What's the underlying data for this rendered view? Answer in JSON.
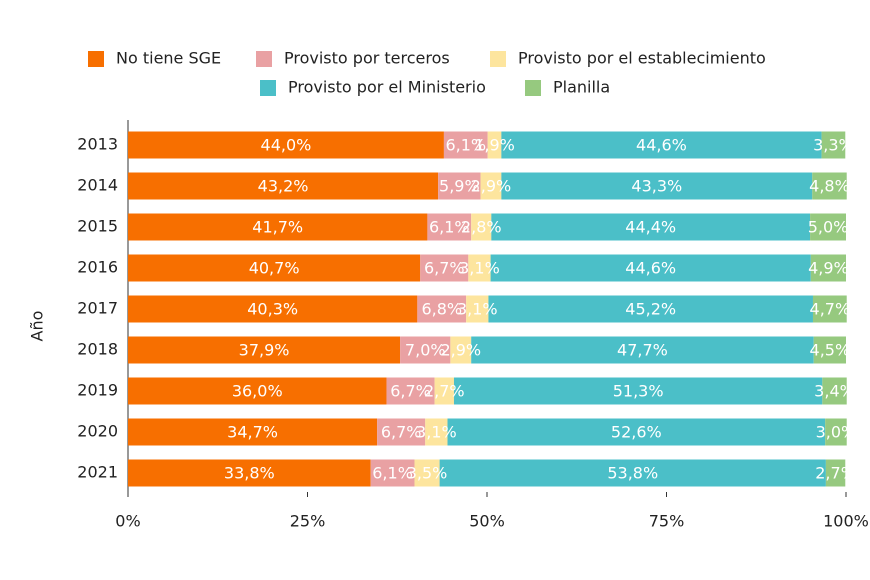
{
  "chart_data": {
    "type": "stacked-bar-horizontal",
    "y_label": "Año",
    "categories": [
      "2013",
      "2014",
      "2015",
      "2016",
      "2017",
      "2018",
      "2019",
      "2020",
      "2021"
    ],
    "series": [
      {
        "name": "No tiene SGE",
        "color": "#f76f00",
        "values": [
          44.0,
          43.2,
          41.7,
          40.7,
          40.3,
          37.9,
          36.0,
          34.7,
          33.8
        ],
        "value_labels": [
          "44,0%",
          "43,2%",
          "41,7%",
          "40,7%",
          "40,3%",
          "37,9%",
          "36,0%",
          "34,7%",
          "33,8%"
        ]
      },
      {
        "name": "Provisto por terceros",
        "color": "#e9a1a3",
        "values": [
          6.1,
          5.9,
          6.1,
          6.7,
          6.8,
          7.0,
          6.7,
          6.7,
          6.1
        ],
        "value_labels": [
          "6,1%",
          "5,9%",
          "6,1%",
          "6,7%",
          "6,8%",
          "7,0%",
          "6,7%",
          "6,7%",
          "6,1%"
        ]
      },
      {
        "name": "Provisto por el establecimiento",
        "color": "#fde59e",
        "values": [
          1.9,
          2.9,
          2.8,
          3.1,
          3.1,
          2.9,
          2.7,
          3.1,
          3.5
        ],
        "value_labels": [
          "1,9%",
          "2,9%",
          "2,8%",
          "3,1%",
          "3,1%",
          "2,9%",
          "2,7%",
          "3,1%",
          "3,5%"
        ]
      },
      {
        "name": "Provisto por el Ministerio",
        "color": "#4bbfc8",
        "values": [
          44.6,
          43.3,
          44.4,
          44.6,
          45.2,
          47.7,
          51.3,
          52.6,
          53.8
        ],
        "value_labels": [
          "44,6%",
          "43,3%",
          "44,4%",
          "44,6%",
          "45,2%",
          "47,7%",
          "51,3%",
          "52,6%",
          "53,8%"
        ]
      },
      {
        "name": "Planilla",
        "color": "#96c97f",
        "values": [
          3.3,
          4.8,
          5.0,
          4.9,
          4.7,
          4.5,
          3.4,
          3.0,
          2.7
        ],
        "value_labels": [
          "3,3%",
          "4,8%",
          "5,0%",
          "4,9%",
          "4,7%",
          "4,5%",
          "3,4%",
          "3,0%",
          "2,7%"
        ]
      }
    ],
    "xlim": [
      0,
      100
    ],
    "xticks": [
      {
        "value": 0,
        "label": "0%"
      },
      {
        "value": 25,
        "label": "25%"
      },
      {
        "value": 50,
        "label": "50%"
      },
      {
        "value": 75,
        "label": "75%"
      },
      {
        "value": 100,
        "label": "100%"
      }
    ]
  }
}
